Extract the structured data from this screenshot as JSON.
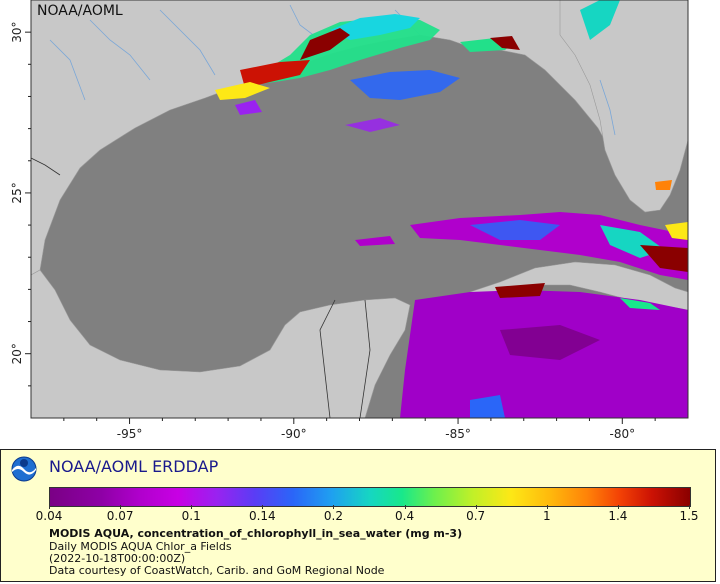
{
  "map": {
    "watermark": "NOAA/AOML",
    "lat_ticks": [
      {
        "value": 30,
        "label": "30°"
      },
      {
        "value": 25,
        "label": "25°"
      },
      {
        "value": 20,
        "label": "20°"
      }
    ],
    "lon_ticks": [
      {
        "value": -95,
        "label": "-95°"
      },
      {
        "value": -90,
        "label": "-90°"
      },
      {
        "value": -85,
        "label": "-85°"
      },
      {
        "value": -80,
        "label": "-80°"
      }
    ],
    "colors": {
      "land": "#c8c8c8",
      "no_data_ocean": "#808080",
      "river": "#7aa7d8",
      "border": "#333333"
    }
  },
  "legend": {
    "brand": "NOAA/AOML ERDDAP",
    "colorbar_ticks": [
      "0.04",
      "0.07",
      "0.1",
      "0.14",
      "0.2",
      "0.4",
      "0.7",
      "1",
      "1.4",
      "1.5"
    ],
    "variable": "MODIS AQUA, concentration_of_chlorophyll_in_sea_water (mg m-3)",
    "dataset": "Daily MODIS AQUA Chlor_a Fields",
    "time": "(2022-10-18T00:00:00Z)",
    "credit": "Data courtesy of CoastWatch, Carib. and GoM Regional Node"
  }
}
